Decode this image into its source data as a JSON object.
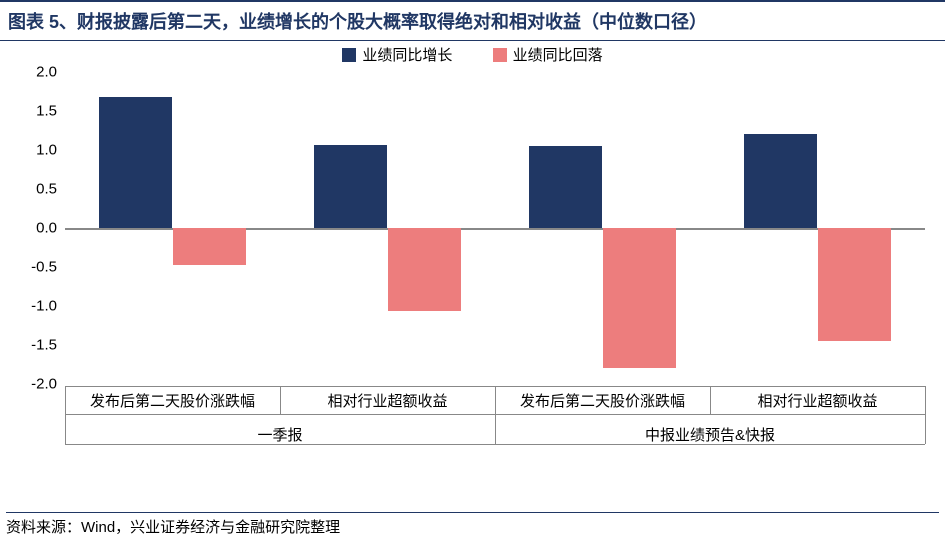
{
  "title": "图表 5、财报披露后第二天，业绩增长的个股大概率取得绝对和相对收益（中位数口径）",
  "source": "资料来源：Wind，兴业证券经济与金融研究院整理",
  "legend": {
    "series1": {
      "label": "业绩同比增长",
      "color": "#203764"
    },
    "series2": {
      "label": "业绩同比回落",
      "color": "#ed7d7d"
    }
  },
  "chart": {
    "type": "bar",
    "ylim": [
      -2.0,
      2.0
    ],
    "ytick_step": 0.5,
    "yticks": [
      "2.0",
      "1.5",
      "1.0",
      "0.5",
      "0.0",
      "-0.5",
      "-1.0",
      "-1.5",
      "-2.0"
    ],
    "zero_line_color": "#888888",
    "bar_width_pct": 8.5,
    "groups": [
      {
        "label": "一季报",
        "subgroups": [
          {
            "label": "发布后第二天股价涨跌幅",
            "s1": 1.68,
            "s2": -0.48
          },
          {
            "label": "相对行业超额收益",
            "s1": 1.07,
            "s2": -1.07
          }
        ]
      },
      {
        "label": "中报业绩预告&快报",
        "subgroups": [
          {
            "label": "发布后第二天股价涨跌幅",
            "s1": 1.05,
            "s2": -1.8
          },
          {
            "label": "相对行业超额收益",
            "s1": 1.2,
            "s2": -1.45
          }
        ]
      }
    ],
    "background_color": "#ffffff",
    "title_color": "#203764",
    "axis_font_size": 15,
    "title_font_size": 18
  }
}
